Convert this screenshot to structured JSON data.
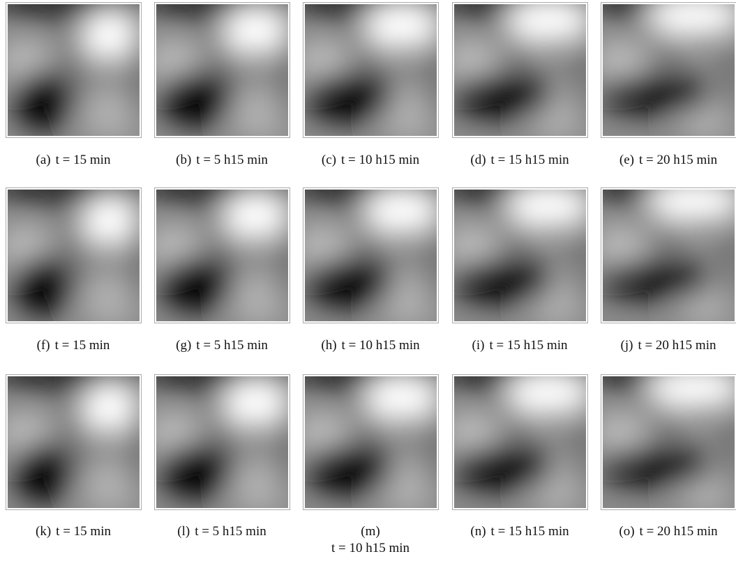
{
  "figure": {
    "panels": [
      {
        "label": "(a)",
        "caption": "t = 15 min"
      },
      {
        "label": "(b)",
        "caption": "t = 5 h15 min"
      },
      {
        "label": "(c)",
        "caption": "t = 10 h15 min"
      },
      {
        "label": "(d)",
        "caption": "t = 15 h15 min"
      },
      {
        "label": "(e)",
        "caption": "t = 20 h15 min"
      },
      {
        "label": "(f)",
        "caption": "t = 15 min"
      },
      {
        "label": "(g)",
        "caption": "t = 5 h15 min"
      },
      {
        "label": "(h)",
        "caption": "t = 10 h15 min"
      },
      {
        "label": "(i)",
        "caption": "t = 15 h15 min"
      },
      {
        "label": "(j)",
        "caption": "t = 20 h15 min"
      },
      {
        "label": "(k)",
        "caption": "t = 15 min"
      },
      {
        "label": "(l)",
        "caption": "t = 5 h15 min"
      },
      {
        "label": "(m)",
        "caption": "t = 10 h15 min"
      },
      {
        "label": "(n)",
        "caption": "t = 15 h15 min"
      },
      {
        "label": "(o)",
        "caption": "t = 20 h15 min"
      }
    ]
  }
}
